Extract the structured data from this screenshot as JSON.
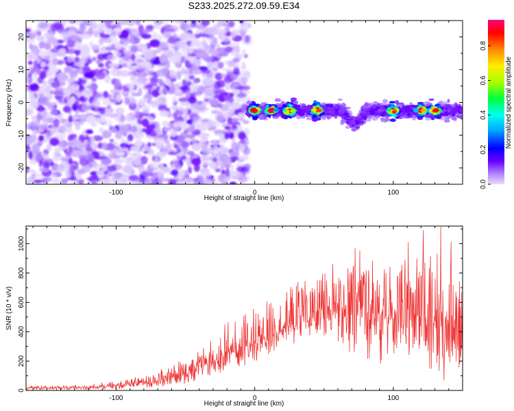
{
  "chart_data": [
    {
      "type": "heatmap",
      "title": "S233.2025.272.09.59.E34",
      "xlabel": "Height of straight line (km)",
      "ylabel": "Frequency (Hz)",
      "xlim": [
        -165,
        150
      ],
      "ylim": [
        -25,
        25
      ],
      "x_ticks": [
        -100,
        0,
        100
      ],
      "y_ticks": [
        -20,
        -10,
        0,
        10,
        20
      ],
      "colorbar": {
        "label": "Normalized spectral amplitude",
        "range": [
          0,
          0.95
        ],
        "ticks": [
          0.0,
          0.2,
          0.4,
          0.6,
          0.8
        ],
        "tick_labels": [
          "0.0",
          "0.2",
          "0.4",
          "0.6",
          "0.8"
        ]
      },
      "regions": [
        {
          "name": "noise field",
          "x_range": [
            -165,
            -5
          ],
          "y_range": [
            -25,
            25
          ],
          "amplitude_range": [
            0.0,
            0.15
          ]
        },
        {
          "name": "noise cluster",
          "x_center": -117,
          "y_center": 11,
          "amplitude": 0.15
        },
        {
          "name": "signal band",
          "x_range": [
            -5,
            150
          ],
          "center_frequency": -2.5,
          "bandwidth": 4,
          "peak_amplitude": 0.9,
          "peak_x": [
            0,
            12,
            25,
            45,
            100,
            120,
            130
          ]
        },
        {
          "name": "signal dip",
          "x_center": 72,
          "frequency_offset": -4
        }
      ]
    },
    {
      "type": "line",
      "xlabel": "Height of straight line (km)",
      "ylabel": "SNR (10 * v/v)",
      "xlim": [
        -165,
        150
      ],
      "ylim": [
        0,
        1120
      ],
      "x_ticks": [
        -100,
        0,
        100
      ],
      "y_ticks": [
        0,
        200,
        400,
        600,
        800,
        1000
      ],
      "series": [
        {
          "name": "SNR",
          "color": "#ee3333",
          "envelope_x": [
            -165,
            -120,
            -100,
            -80,
            -60,
            -40,
            -20,
            0,
            20,
            40,
            60,
            80,
            100,
            120,
            140,
            150
          ],
          "envelope_lower": [
            0,
            5,
            10,
            20,
            30,
            60,
            130,
            190,
            290,
            350,
            260,
            170,
            180,
            120,
            50,
            60
          ],
          "envelope_upper": [
            30,
            40,
            70,
            110,
            170,
            290,
            500,
            560,
            680,
            820,
            930,
            1000,
            900,
            1120,
            1120,
            830
          ],
          "median": [
            15,
            20,
            35,
            55,
            80,
            150,
            250,
            340,
            420,
            540,
            560,
            540,
            500,
            520,
            480,
            460
          ]
        }
      ]
    }
  ]
}
